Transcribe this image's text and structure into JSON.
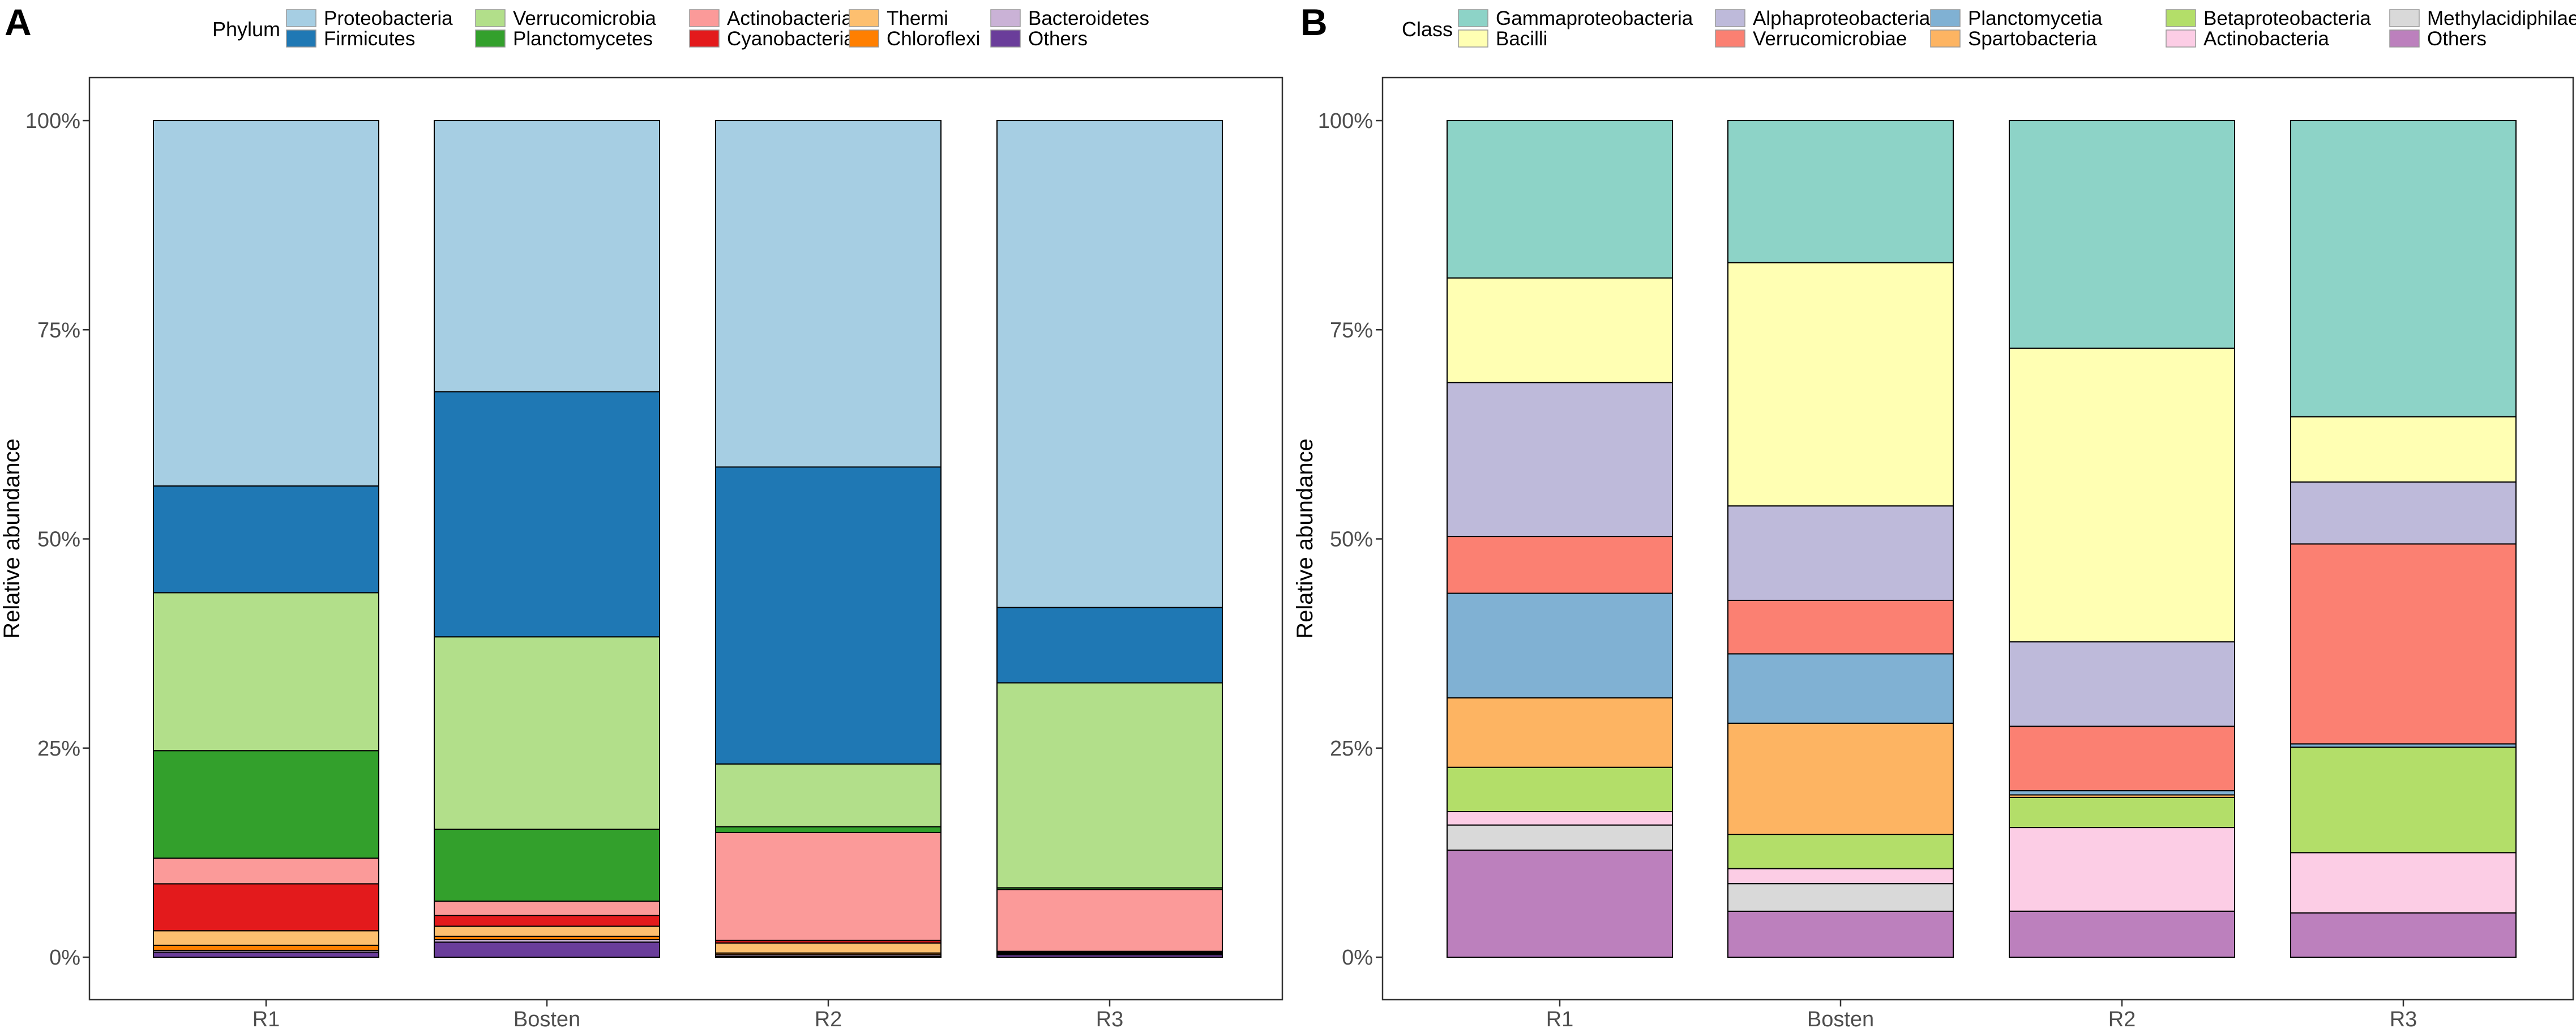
{
  "palette": {
    "light_blue": "#a6cee3",
    "dark_blue": "#1f78b4",
    "light_green": "#b2df8a",
    "dark_green": "#33a02c",
    "pink": "#fb9a99",
    "red": "#e31a1c",
    "light_orange": "#fdbf6f",
    "orange": "#ff7f00",
    "lavender": "#cab2d6",
    "purple": "#6a3d9a",
    "teal": "#8dd3c7",
    "pale_yellow": "#ffffb3",
    "slate_lavender": "#bebada",
    "salmon": "#fb8072",
    "steel_blue": "#80b1d3",
    "sand": "#fdb462",
    "lime": "#b3de69",
    "rose": "#fccde5",
    "grey": "#d9d9d9",
    "mauve": "#bc80bd"
  },
  "chart_data": [
    {
      "panel_label": "A",
      "type": "bar",
      "stacked": true,
      "title": "",
      "xlabel": "",
      "ylabel": "Relative abundance",
      "ylim": [
        0,
        100
      ],
      "yticks": [
        0,
        25,
        50,
        75,
        100
      ],
      "ytick_labels": [
        "0%",
        "25%",
        "50%",
        "75%",
        "100%"
      ],
      "categories": [
        "R1",
        "Bosten",
        "R2",
        "R3"
      ],
      "legend_title": "Phylum",
      "legend_position": "top",
      "legend_order": [
        "Proteobacteria",
        "Firmicutes",
        "Verrucomicrobia",
        "Planctomycetes",
        "Actinobacteria",
        "Cyanobacteria",
        "Thermi",
        "Chloroflexi",
        "Bacteroidetes",
        "Others"
      ],
      "series": [
        {
          "name": "Others",
          "color": "#6a3d9a",
          "values": [
            0.6,
            1.8,
            0.1,
            0.3
          ]
        },
        {
          "name": "Bacteroidetes",
          "color": "#cab2d6",
          "values": [
            0.2,
            0.3,
            0.2,
            0.1
          ]
        },
        {
          "name": "Chloroflexi",
          "color": "#ff7f00",
          "values": [
            0.6,
            0.4,
            0.2,
            0.1
          ]
        },
        {
          "name": "Thermi",
          "color": "#fdbf6f",
          "values": [
            1.7,
            1.2,
            1.2,
            0.1
          ]
        },
        {
          "name": "Cyanobacteria",
          "color": "#e31a1c",
          "values": [
            5.5,
            1.3,
            0.3,
            0.1
          ]
        },
        {
          "name": "Actinobacteria",
          "color": "#fb9a99",
          "values": [
            3.0,
            1.7,
            12.9,
            7.4
          ]
        },
        {
          "name": "Planctomycetes",
          "color": "#33a02c",
          "values": [
            12.6,
            8.6,
            0.7,
            0.2
          ]
        },
        {
          "name": "Verrucomicrobia",
          "color": "#b2df8a",
          "values": [
            18.5,
            23.0,
            7.5,
            24.5
          ]
        },
        {
          "name": "Firmicutes",
          "color": "#1f78b4",
          "values": [
            12.5,
            29.3,
            35.5,
            9.0
          ]
        },
        {
          "name": "Proteobacteria",
          "color": "#a6cee3",
          "values": [
            42.8,
            32.4,
            41.4,
            58.2
          ]
        }
      ]
    },
    {
      "panel_label": "B",
      "type": "bar",
      "stacked": true,
      "title": "",
      "xlabel": "",
      "ylabel": "Relative abundance",
      "ylim": [
        0,
        100
      ],
      "yticks": [
        0,
        25,
        50,
        75,
        100
      ],
      "ytick_labels": [
        "0%",
        "25%",
        "50%",
        "75%",
        "100%"
      ],
      "categories": [
        "R1",
        "Bosten",
        "R2",
        "R3"
      ],
      "legend_title": "Class",
      "legend_position": "top",
      "legend_order": [
        "Gammaproteobacteria",
        "Bacilli",
        "Alphaproteobacteria",
        "Verrucomicrobiae",
        "Planctomycetia",
        "Spartobacteria",
        "Betaproteobacteria",
        "Actinobacteria",
        "Methylacidiphilae",
        "Others"
      ],
      "series": [
        {
          "name": "Others",
          "color": "#bc80bd",
          "values": [
            12.8,
            5.5,
            5.5,
            5.3
          ]
        },
        {
          "name": "Methylacidiphilae",
          "color": "#d9d9d9",
          "values": [
            3.0,
            3.3,
            0.0,
            0.0
          ]
        },
        {
          "name": "Actinobacteria",
          "color": "#fccde5",
          "values": [
            1.6,
            1.8,
            10.0,
            7.2
          ]
        },
        {
          "name": "Betaproteobacteria",
          "color": "#b3de69",
          "values": [
            5.3,
            4.1,
            3.6,
            12.6
          ]
        },
        {
          "name": "Spartobacteria",
          "color": "#fdb462",
          "values": [
            8.3,
            13.3,
            0.3,
            0.0
          ]
        },
        {
          "name": "Planctomycetia",
          "color": "#80b1d3",
          "values": [
            12.5,
            8.3,
            0.5,
            0.4
          ]
        },
        {
          "name": "Verrucomicrobiae",
          "color": "#fb8072",
          "values": [
            6.8,
            6.4,
            7.7,
            23.9
          ]
        },
        {
          "name": "Alphaproteobacteria",
          "color": "#bebada",
          "values": [
            18.4,
            11.3,
            10.1,
            7.4
          ]
        },
        {
          "name": "Bacilli",
          "color": "#ffffb3",
          "values": [
            12.5,
            29.1,
            35.1,
            7.8
          ]
        },
        {
          "name": "Gammaproteobacteria",
          "color": "#8dd3c7",
          "values": [
            18.8,
            17.0,
            27.2,
            35.4
          ]
        }
      ]
    }
  ]
}
